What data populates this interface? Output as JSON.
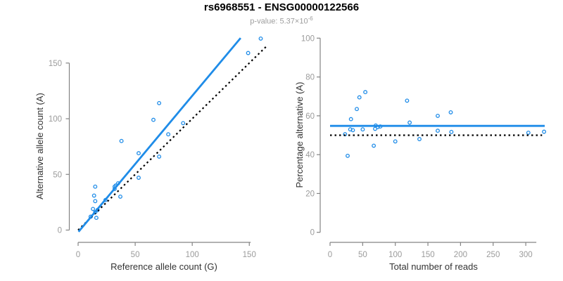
{
  "header": {
    "title": "rs6968551 - ENSG00000122566",
    "subtitle_prefix": "p-value: 5.37×10",
    "subtitle_exponent": "-6"
  },
  "colors": {
    "accent_blue": "#1f8ce8",
    "dashed_black": "#000000",
    "axis_gray": "#848484",
    "tick_label_gray": "#9b9b9b",
    "axis_title_color": "#333333"
  },
  "chart_data": [
    {
      "id": "allele-count-panel",
      "type": "scatter",
      "xlabel": "Reference allele count (G)",
      "ylabel": "Alternative allele count (A)",
      "x_ticks": [
        0,
        50,
        100,
        150
      ],
      "y_ticks": [
        0,
        50,
        100,
        150
      ],
      "xlim": [
        0,
        165
      ],
      "ylim": [
        0,
        175
      ],
      "grid": false,
      "points": [
        [
          11,
          12
        ],
        [
          16,
          11
        ],
        [
          13,
          19
        ],
        [
          15,
          16
        ],
        [
          17,
          18
        ],
        [
          15,
          26
        ],
        [
          14,
          31
        ],
        [
          15,
          39
        ],
        [
          24,
          27
        ],
        [
          37,
          30
        ],
        [
          32,
          37
        ],
        [
          32,
          39
        ],
        [
          33,
          40
        ],
        [
          35,
          42
        ],
        [
          53,
          47
        ],
        [
          38,
          80
        ],
        [
          53,
          69
        ],
        [
          71,
          66
        ],
        [
          66,
          99
        ],
        [
          79,
          86
        ],
        [
          71,
          114
        ],
        [
          92,
          96
        ],
        [
          149,
          159
        ],
        [
          160,
          172
        ]
      ],
      "lines": [
        {
          "name": "identity-line",
          "style": "dotted",
          "color": "#000000",
          "from": [
            0,
            0
          ],
          "to": [
            166,
            166
          ]
        },
        {
          "name": "fit-line",
          "style": "solid",
          "color": "#1f8ce8",
          "from": [
            0.4,
            -1.5
          ],
          "to": [
            142.4,
            172.5
          ]
        }
      ]
    },
    {
      "id": "percentage-panel",
      "type": "scatter",
      "xlabel": "Total number of reads",
      "ylabel": "Percentage alternative (A)",
      "x_ticks": [
        0,
        50,
        100,
        150,
        200,
        250,
        300
      ],
      "y_ticks": [
        0,
        20,
        40,
        60,
        80,
        100
      ],
      "xlim": [
        0,
        330
      ],
      "ylim": [
        0,
        100
      ],
      "grid": false,
      "points": [
        [
          23,
          50.5
        ],
        [
          27,
          39.4
        ],
        [
          32,
          58.3
        ],
        [
          31,
          53
        ],
        [
          35,
          52.6
        ],
        [
          41,
          63.5
        ],
        [
          45,
          69.5
        ],
        [
          54,
          72.2
        ],
        [
          50,
          53
        ],
        [
          67,
          44.6
        ],
        [
          69,
          53.3
        ],
        [
          70,
          55
        ],
        [
          73,
          54.2
        ],
        [
          77,
          54.5
        ],
        [
          100,
          46.8
        ],
        [
          118,
          67.8
        ],
        [
          122,
          56.5
        ],
        [
          137,
          48
        ],
        [
          165,
          60
        ],
        [
          165,
          52.3
        ],
        [
          185,
          61.8
        ],
        [
          186,
          51.7
        ],
        [
          304,
          51.3
        ],
        [
          328,
          51.8
        ]
      ],
      "lines": [
        {
          "name": "null-line",
          "style": "dotted",
          "color": "#000000",
          "from": [
            0,
            50
          ],
          "to": [
            325,
            50
          ]
        },
        {
          "name": "mean-line",
          "style": "solid",
          "color": "#1f8ce8",
          "from": [
            0,
            54.8
          ],
          "to": [
            329,
            54.8
          ]
        }
      ]
    }
  ]
}
